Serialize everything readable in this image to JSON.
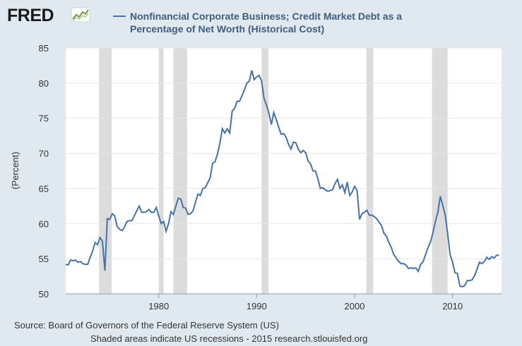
{
  "brand": {
    "name": "FRED",
    "icon": "chart-line-icon"
  },
  "chart_data": {
    "type": "line",
    "title": "Nonfinancial Corporate Business; Credit Market Debt as a Percentage of Net Worth (Historical Cost)",
    "title_lines": [
      "Nonfinancial Corporate Business; Credit Market Debt as a",
      "Percentage of Net Worth (Historical Cost)"
    ],
    "ylabel": "(Percent)",
    "xlabel": "",
    "xlim": [
      1970.5,
      2015.0
    ],
    "ylim": [
      50,
      85
    ],
    "x_ticks": [
      1980,
      1990,
      2000,
      2010
    ],
    "x_tick_labels": [
      "1980",
      "1990",
      "2000",
      "2010"
    ],
    "y_ticks": [
      50,
      55,
      60,
      65,
      70,
      75,
      80,
      85
    ],
    "y_tick_labels": [
      "50",
      "55",
      "60",
      "65",
      "70",
      "75",
      "80",
      "85"
    ],
    "grid": "horizontal",
    "line_color": "#4572a7",
    "recession_color": "#dcdcdc",
    "recessions": [
      [
        1973.9,
        1975.2
      ],
      [
        1980.0,
        1980.5
      ],
      [
        1981.5,
        1982.9
      ],
      [
        1990.5,
        1991.2
      ],
      [
        2001.2,
        2001.9
      ],
      [
        2007.9,
        2009.5
      ]
    ],
    "series": [
      {
        "values": [
          [
            1970.5,
            54.2
          ],
          [
            1970.75,
            54.1
          ],
          [
            1971.0,
            54.8
          ],
          [
            1971.25,
            54.7
          ],
          [
            1971.5,
            54.8
          ],
          [
            1971.75,
            54.5
          ],
          [
            1972.0,
            54.6
          ],
          [
            1972.25,
            54.3
          ],
          [
            1972.5,
            54.2
          ],
          [
            1972.75,
            54.2
          ],
          [
            1973.0,
            55.2
          ],
          [
            1973.25,
            56.1
          ],
          [
            1973.5,
            57.3
          ],
          [
            1973.75,
            57.0
          ],
          [
            1974.0,
            58.0
          ],
          [
            1974.25,
            57.5
          ],
          [
            1974.5,
            53.3
          ],
          [
            1974.75,
            60.7
          ],
          [
            1975.0,
            60.6
          ],
          [
            1975.25,
            61.4
          ],
          [
            1975.5,
            61.1
          ],
          [
            1975.75,
            59.6
          ],
          [
            1976.0,
            59.2
          ],
          [
            1976.25,
            59.0
          ],
          [
            1976.5,
            59.5
          ],
          [
            1976.75,
            60.3
          ],
          [
            1977.0,
            60.4
          ],
          [
            1977.25,
            60.4
          ],
          [
            1977.5,
            61.1
          ],
          [
            1977.75,
            61.8
          ],
          [
            1978.0,
            62.5
          ],
          [
            1978.25,
            61.6
          ],
          [
            1978.5,
            61.6
          ],
          [
            1978.75,
            61.7
          ],
          [
            1979.0,
            62.0
          ],
          [
            1979.25,
            61.6
          ],
          [
            1979.5,
            61.6
          ],
          [
            1979.75,
            62.3
          ],
          [
            1980.0,
            61.1
          ],
          [
            1980.25,
            60.0
          ],
          [
            1980.5,
            60.3
          ],
          [
            1980.75,
            58.9
          ],
          [
            1981.0,
            60.0
          ],
          [
            1981.25,
            61.7
          ],
          [
            1981.5,
            61.3
          ],
          [
            1981.75,
            62.5
          ],
          [
            1982.0,
            63.6
          ],
          [
            1982.25,
            63.5
          ],
          [
            1982.5,
            62.3
          ],
          [
            1982.75,
            62.2
          ],
          [
            1983.0,
            61.3
          ],
          [
            1983.25,
            61.4
          ],
          [
            1983.5,
            61.8
          ],
          [
            1983.75,
            63.0
          ],
          [
            1984.0,
            64.2
          ],
          [
            1984.25,
            64.0
          ],
          [
            1984.5,
            65.0
          ],
          [
            1984.75,
            65.1
          ],
          [
            1985.0,
            65.8
          ],
          [
            1985.25,
            66.5
          ],
          [
            1985.5,
            68.6
          ],
          [
            1985.75,
            68.8
          ],
          [
            1986.0,
            69.9
          ],
          [
            1986.25,
            71.5
          ],
          [
            1986.5,
            73.5
          ],
          [
            1986.75,
            72.9
          ],
          [
            1987.0,
            73.5
          ],
          [
            1987.25,
            72.9
          ],
          [
            1987.5,
            76.0
          ],
          [
            1987.75,
            76.4
          ],
          [
            1988.0,
            77.4
          ],
          [
            1988.25,
            77.4
          ],
          [
            1988.5,
            78.2
          ],
          [
            1988.75,
            79.0
          ],
          [
            1989.0,
            80.0
          ],
          [
            1989.25,
            80.3
          ],
          [
            1989.5,
            81.8
          ],
          [
            1989.75,
            80.5
          ],
          [
            1990.0,
            80.9
          ],
          [
            1990.25,
            81.1
          ],
          [
            1990.5,
            80.3
          ],
          [
            1990.75,
            77.8
          ],
          [
            1991.0,
            76.9
          ],
          [
            1991.25,
            75.7
          ],
          [
            1991.5,
            74.1
          ],
          [
            1991.75,
            75.8
          ],
          [
            1992.0,
            74.8
          ],
          [
            1992.25,
            73.7
          ],
          [
            1992.5,
            72.7
          ],
          [
            1992.75,
            72.8
          ],
          [
            1993.0,
            72.3
          ],
          [
            1993.25,
            71.3
          ],
          [
            1993.5,
            70.6
          ],
          [
            1993.75,
            71.6
          ],
          [
            1994.0,
            71.5
          ],
          [
            1994.25,
            70.6
          ],
          [
            1994.5,
            70.1
          ],
          [
            1994.75,
            70.4
          ],
          [
            1995.0,
            70.1
          ],
          [
            1995.25,
            68.9
          ],
          [
            1995.5,
            68.5
          ],
          [
            1995.75,
            67.5
          ],
          [
            1996.0,
            67.5
          ],
          [
            1996.25,
            66.4
          ],
          [
            1996.5,
            65.0
          ],
          [
            1996.75,
            65.1
          ],
          [
            1997.0,
            64.8
          ],
          [
            1997.25,
            64.6
          ],
          [
            1997.5,
            64.7
          ],
          [
            1997.75,
            64.8
          ],
          [
            1998.0,
            65.7
          ],
          [
            1998.25,
            66.3
          ],
          [
            1998.5,
            65.0
          ],
          [
            1998.75,
            65.5
          ],
          [
            1999.0,
            64.4
          ],
          [
            1999.25,
            65.9
          ],
          [
            1999.5,
            64.0
          ],
          [
            1999.75,
            64.5
          ],
          [
            2000.0,
            65.3
          ],
          [
            2000.25,
            64.7
          ],
          [
            2000.5,
            60.6
          ],
          [
            2000.75,
            61.4
          ],
          [
            2001.0,
            61.6
          ],
          [
            2001.25,
            61.9
          ],
          [
            2001.5,
            61.2
          ],
          [
            2001.75,
            61.2
          ],
          [
            2002.0,
            61.0
          ],
          [
            2002.25,
            60.7
          ],
          [
            2002.5,
            60.2
          ],
          [
            2002.75,
            59.7
          ],
          [
            2003.0,
            58.6
          ],
          [
            2003.25,
            58.2
          ],
          [
            2003.5,
            57.3
          ],
          [
            2003.75,
            56.6
          ],
          [
            2004.0,
            55.6
          ],
          [
            2004.25,
            55.1
          ],
          [
            2004.5,
            54.6
          ],
          [
            2004.75,
            54.3
          ],
          [
            2005.0,
            54.3
          ],
          [
            2005.25,
            54.1
          ],
          [
            2005.5,
            53.6
          ],
          [
            2005.75,
            53.7
          ],
          [
            2006.0,
            53.6
          ],
          [
            2006.25,
            53.7
          ],
          [
            2006.5,
            53.2
          ],
          [
            2006.75,
            54.2
          ],
          [
            2007.0,
            54.6
          ],
          [
            2007.25,
            55.6
          ],
          [
            2007.5,
            56.6
          ],
          [
            2007.75,
            57.4
          ],
          [
            2008.0,
            58.7
          ],
          [
            2008.25,
            60.3
          ],
          [
            2008.5,
            61.6
          ],
          [
            2008.75,
            63.9
          ],
          [
            2009.0,
            62.6
          ],
          [
            2009.25,
            61.2
          ],
          [
            2009.5,
            58.6
          ],
          [
            2009.75,
            55.6
          ],
          [
            2010.0,
            54.5
          ],
          [
            2010.25,
            53.0
          ],
          [
            2010.5,
            52.9
          ],
          [
            2010.75,
            51.1
          ],
          [
            2011.0,
            51.0
          ],
          [
            2011.25,
            51.2
          ],
          [
            2011.5,
            51.9
          ],
          [
            2011.75,
            51.9
          ],
          [
            2012.0,
            52.0
          ],
          [
            2012.25,
            52.6
          ],
          [
            2012.5,
            53.5
          ],
          [
            2012.75,
            54.5
          ],
          [
            2013.0,
            54.3
          ],
          [
            2013.25,
            54.6
          ],
          [
            2013.5,
            55.2
          ],
          [
            2013.75,
            54.9
          ],
          [
            2014.0,
            55.3
          ],
          [
            2014.25,
            55.1
          ],
          [
            2014.5,
            55.5
          ],
          [
            2014.75,
            55.5
          ]
        ]
      }
    ]
  },
  "footer": {
    "source": "Source: Board of Governors of the Federal Reserve System (US)",
    "note": "Shaded areas indicate US recessions - 2015 research.stlouisfed.org"
  }
}
